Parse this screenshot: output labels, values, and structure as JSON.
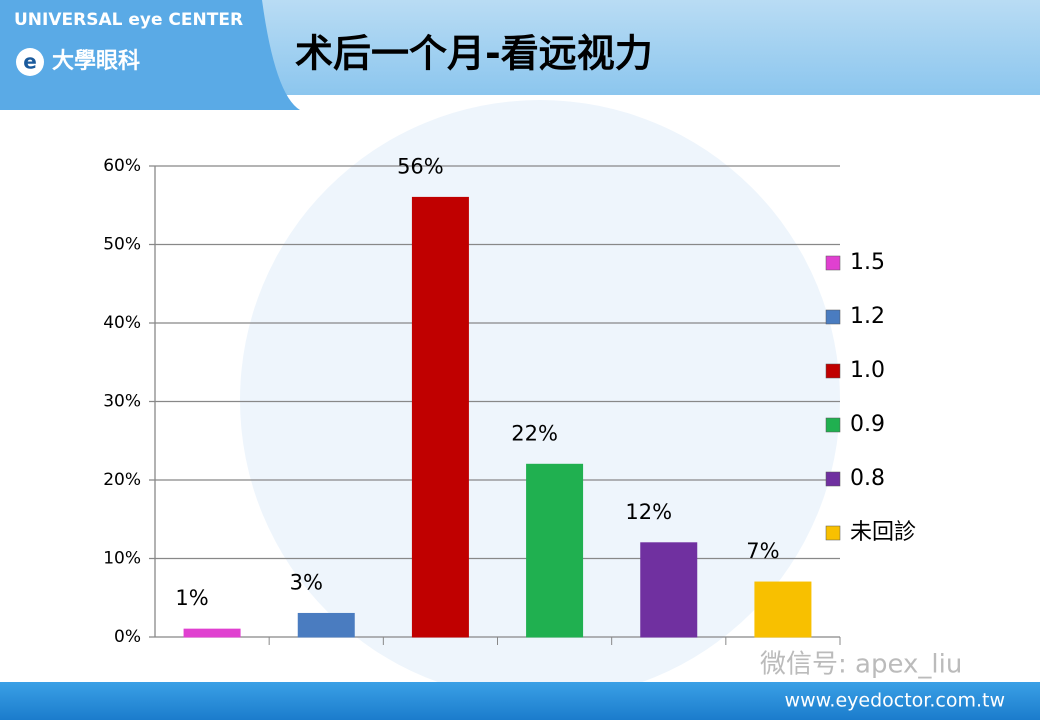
{
  "header": {
    "brand": "UNIVERSAL eye CENTER",
    "logo_text": "大學眼科"
  },
  "chart_data": {
    "type": "bar",
    "title": "术后一个月-看远视力",
    "categories": [
      "1.5",
      "1.2",
      "1.0",
      "0.9",
      "0.8",
      "未回診"
    ],
    "values": [
      1,
      3,
      56,
      22,
      12,
      7
    ],
    "value_labels": [
      "1%",
      "3%",
      "56%",
      "22%",
      "12%",
      "7%"
    ],
    "colors": [
      "#e040d0",
      "#4a7cc0",
      "#c00000",
      "#20b050",
      "#7030a0",
      "#f8c000"
    ],
    "ylim": [
      0,
      60
    ],
    "yticks": [
      {
        "value": 0,
        "label": "0%"
      },
      {
        "value": 10,
        "label": "10%"
      },
      {
        "value": 20,
        "label": "20%"
      },
      {
        "value": 30,
        "label": "30%"
      },
      {
        "value": 40,
        "label": "40%"
      },
      {
        "value": 50,
        "label": "50%"
      },
      {
        "value": 60,
        "label": "60%"
      }
    ],
    "grid": true,
    "legend": "right"
  },
  "footer": {
    "watermark": "微信号: apex_liu",
    "url": "www.eyedoctor.com.tw"
  }
}
